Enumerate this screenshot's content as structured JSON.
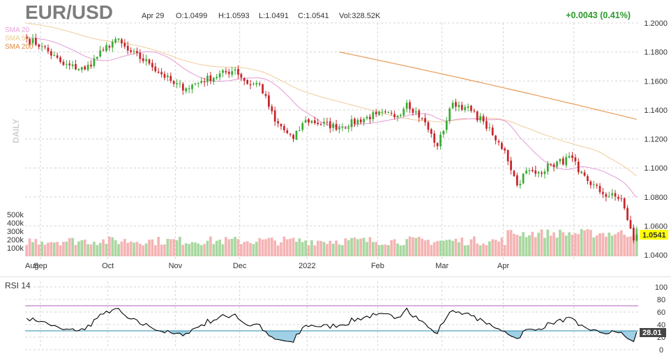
{
  "header": {
    "symbol": "EUR/USD",
    "date": "Apr 29",
    "open": "O:1.0499",
    "high": "H:1.0593",
    "low": "L:1.0491",
    "close": "C:1.0541",
    "volume": "Vol:328.52K",
    "change": "+0.0043 (0.41%)"
  },
  "legend": {
    "sma20": "SMA 20",
    "sma50": "SMA 50",
    "sma200": "SMA 200"
  },
  "period_label": "DAILY",
  "price_badge": "1.0541",
  "rsi_label": "RSI 14",
  "rsi_badge": "28.01",
  "colors": {
    "up": "#3aaa35",
    "down": "#c8242a",
    "vol_up": "#a8d8a0",
    "vol_down": "#f4b4b4",
    "sma20": "#e6a3d8",
    "sma50": "#f0d0a0",
    "sma200": "#e89a55",
    "rsi_line": "#000000",
    "rsi_70": "#b05cc0",
    "rsi_30": "#2a8aaa"
  },
  "chart_data": [
    {
      "type": "candlestick",
      "title": "EUR/USD",
      "x_ticks": [
        "Aug",
        "Sep",
        "Oct",
        "Nov",
        "Dec",
        "2022",
        "Feb",
        "Mar",
        "Apr"
      ],
      "y_ticks": [
        "1.2000",
        "1.1800",
        "1.1600",
        "1.1400",
        "1.1200",
        "1.1000",
        "1.0800",
        "1.0600",
        "1.0400"
      ],
      "ylim": [
        1.04,
        1.2
      ],
      "anchors": [
        {
          "date": "2021-07-26",
          "close": 1.189
        },
        {
          "date": "2021-08-02",
          "close": 1.184
        },
        {
          "date": "2021-08-11",
          "close": 1.171
        },
        {
          "date": "2021-08-20",
          "close": 1.168
        },
        {
          "date": "2021-08-30",
          "close": 1.181
        },
        {
          "date": "2021-09-03",
          "close": 1.189
        },
        {
          "date": "2021-09-09",
          "close": 1.181
        },
        {
          "date": "2021-09-20",
          "close": 1.172
        },
        {
          "date": "2021-09-30",
          "close": 1.158
        },
        {
          "date": "2021-10-06",
          "close": 1.155
        },
        {
          "date": "2021-10-13",
          "close": 1.16
        },
        {
          "date": "2021-10-28",
          "close": 1.168
        },
        {
          "date": "2021-11-03",
          "close": 1.158
        },
        {
          "date": "2021-11-09",
          "close": 1.158
        },
        {
          "date": "2021-11-16",
          "close": 1.132
        },
        {
          "date": "2021-11-24",
          "close": 1.12
        },
        {
          "date": "2021-11-30",
          "close": 1.133
        },
        {
          "date": "2021-12-15",
          "close": 1.128
        },
        {
          "date": "2021-12-31",
          "close": 1.137
        },
        {
          "date": "2022-01-11",
          "close": 1.136
        },
        {
          "date": "2022-01-14",
          "close": 1.145
        },
        {
          "date": "2022-01-21",
          "close": 1.134
        },
        {
          "date": "2022-01-28",
          "close": 1.115
        },
        {
          "date": "2022-02-04",
          "close": 1.145
        },
        {
          "date": "2022-02-10",
          "close": 1.142
        },
        {
          "date": "2022-02-18",
          "close": 1.132
        },
        {
          "date": "2022-02-24",
          "close": 1.119
        },
        {
          "date": "2022-03-01",
          "close": 1.112
        },
        {
          "date": "2022-03-07",
          "close": 1.088
        },
        {
          "date": "2022-03-10",
          "close": 1.098
        },
        {
          "date": "2022-03-15",
          "close": 1.096
        },
        {
          "date": "2022-03-22",
          "close": 1.102
        },
        {
          "date": "2022-03-31",
          "close": 1.107
        },
        {
          "date": "2022-04-04",
          "close": 1.097
        },
        {
          "date": "2022-04-14",
          "close": 1.082
        },
        {
          "date": "2022-04-22",
          "close": 1.079
        },
        {
          "date": "2022-04-26",
          "close": 1.064
        },
        {
          "date": "2022-04-28",
          "close": 1.05
        },
        {
          "date": "2022-04-29",
          "open": 1.0499,
          "high": 1.0593,
          "low": 1.0491,
          "close": 1.0541
        }
      ],
      "volume": {
        "y_ticks": [
          "500k",
          "400k",
          "300k",
          "200k",
          "100k"
        ],
        "last": "328.52K"
      }
    },
    {
      "type": "line",
      "title": "RSI 14",
      "y_ticks": [
        "100",
        "80",
        "60",
        "40",
        "20",
        "0"
      ],
      "ylim": [
        0,
        100
      ],
      "overbought": 70,
      "oversold": 30,
      "last": 28.01
    }
  ]
}
